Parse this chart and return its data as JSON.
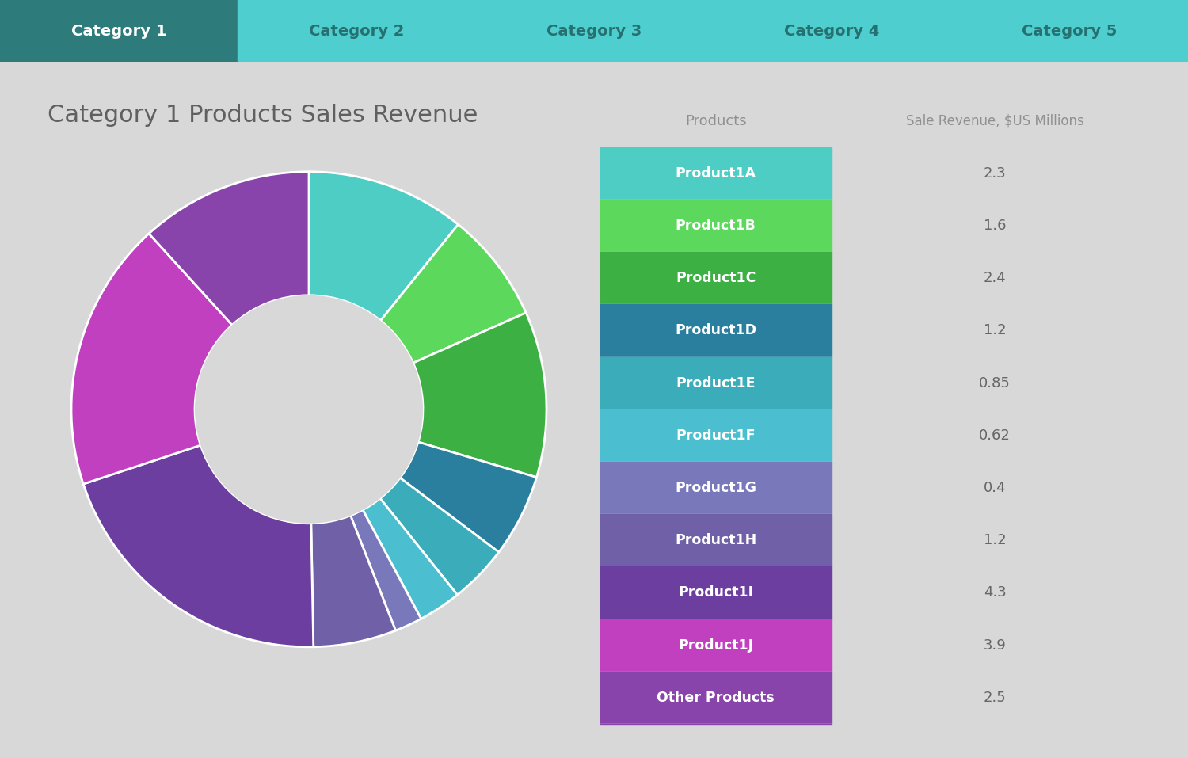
{
  "title": "Category 1 Products Sales Revenue",
  "tab_labels": [
    "Category 1",
    "Category 2",
    "Category 3",
    "Category 4",
    "Category 5"
  ],
  "active_tab": 0,
  "tab_active_color": "#2d7b7b",
  "tab_inactive_color": "#4ecece",
  "tab_text_active": "#ffffff",
  "tab_text_inactive": "#267070",
  "background_color": "#d8d8d8",
  "products": [
    "Product1A",
    "Product1B",
    "Product1C",
    "Product1D",
    "Product1E",
    "Product1F",
    "Product1G",
    "Product1H",
    "Product1I",
    "Product1J",
    "Other Products"
  ],
  "values": [
    2.3,
    1.6,
    2.4,
    1.2,
    0.85,
    0.62,
    0.4,
    1.2,
    4.3,
    3.9,
    2.5
  ],
  "colors": [
    "#4ecdc4",
    "#5cd85c",
    "#3cb043",
    "#2a7f9f",
    "#3aacba",
    "#4bbfcf",
    "#7878bb",
    "#7060a8",
    "#6b3ea0",
    "#c040c0",
    "#8844aa"
  ],
  "col1_header": "Products",
  "col2_header": "Sale Revenue, $US Millions",
  "donut_hole_color": "#d8d8d8",
  "title_color": "#606060",
  "title_fontsize": 22,
  "table_bg": "#ffffff",
  "header_bg": "#f5f5f5",
  "header_text_color": "#909090",
  "value_text_color": "#666666",
  "row_divider_color": "#e0e0e0"
}
